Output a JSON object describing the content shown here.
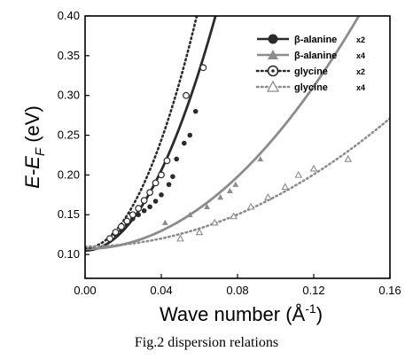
{
  "caption": "Fig.2 dispersion relations",
  "chart_data": {
    "type": "scatter",
    "xlabel_prefix": "Wave number (",
    "xlabel_unit": "Å",
    "xlabel_exp": "-1",
    "xlabel_suffix": ")",
    "ylabel_main": "E-E",
    "ylabel_sub": "F",
    "ylabel_unit": " (eV)",
    "xlim": [
      0.0,
      0.16
    ],
    "ylim": [
      0.07,
      0.4
    ],
    "x_ticks": [
      "0.00",
      "0.04",
      "0.08",
      "0.12",
      "0.16"
    ],
    "x_tick_values": [
      0.0,
      0.04,
      0.08,
      0.12,
      0.16
    ],
    "y_ticks": [
      "0.10",
      "0.15",
      "0.20",
      "0.25",
      "0.30",
      "0.35",
      "0.40"
    ],
    "y_tick_values": [
      0.1,
      0.15,
      0.2,
      0.25,
      0.3,
      0.35,
      0.4
    ],
    "legend_position": "top-right",
    "series": [
      {
        "name": "β-alanine",
        "mult": "x2",
        "marker": "filled-circle",
        "line": "solid",
        "color": "#2b2b2b",
        "points": [
          [
            0.016,
            0.125
          ],
          [
            0.019,
            0.13
          ],
          [
            0.022,
            0.138
          ],
          [
            0.025,
            0.145
          ],
          [
            0.028,
            0.15
          ],
          [
            0.031,
            0.155
          ],
          [
            0.034,
            0.16
          ],
          [
            0.037,
            0.167
          ],
          [
            0.04,
            0.175
          ],
          [
            0.044,
            0.188
          ],
          [
            0.046,
            0.198
          ],
          [
            0.048,
            0.22
          ],
          [
            0.052,
            0.24
          ],
          [
            0.055,
            0.25
          ],
          [
            0.058,
            0.28
          ]
        ],
        "fit": {
          "y0": 0.105,
          "a": 63.0
        }
      },
      {
        "name": "β-alanine",
        "mult": "x4",
        "marker": "filled-triangle",
        "line": "solid",
        "color": "#8c8c8c",
        "points": [
          [
            0.042,
            0.14
          ],
          [
            0.055,
            0.15
          ],
          [
            0.064,
            0.16
          ],
          [
            0.071,
            0.172
          ],
          [
            0.076,
            0.18
          ],
          [
            0.079,
            0.188
          ],
          [
            0.092,
            0.22
          ]
        ],
        "fit": {
          "y0": 0.107,
          "a": 14.2
        }
      },
      {
        "name": "glycine",
        "mult": "x2",
        "marker": "dotted-circle",
        "line": "dotted",
        "color": "#2b2b2b",
        "points": [
          [
            0.013,
            0.12
          ],
          [
            0.016,
            0.128
          ],
          [
            0.019,
            0.135
          ],
          [
            0.022,
            0.142
          ],
          [
            0.025,
            0.15
          ],
          [
            0.028,
            0.158
          ],
          [
            0.031,
            0.168
          ],
          [
            0.034,
            0.178
          ],
          [
            0.037,
            0.19
          ],
          [
            0.04,
            0.2
          ],
          [
            0.043,
            0.218
          ],
          [
            0.053,
            0.3
          ],
          [
            0.062,
            0.335
          ]
        ],
        "fit": {
          "y0": 0.108,
          "a": 85.0
        }
      },
      {
        "name": "glycine",
        "mult": "x4",
        "marker": "open-triangle",
        "line": "dotted",
        "color": "#8c8c8c",
        "points": [
          [
            0.05,
            0.12
          ],
          [
            0.06,
            0.128
          ],
          [
            0.068,
            0.14
          ],
          [
            0.078,
            0.148
          ],
          [
            0.087,
            0.16
          ],
          [
            0.096,
            0.172
          ],
          [
            0.105,
            0.185
          ],
          [
            0.112,
            0.2
          ],
          [
            0.12,
            0.208
          ],
          [
            0.138,
            0.22
          ]
        ],
        "fit": {
          "y0": 0.11,
          "a": 6.3
        }
      }
    ]
  }
}
